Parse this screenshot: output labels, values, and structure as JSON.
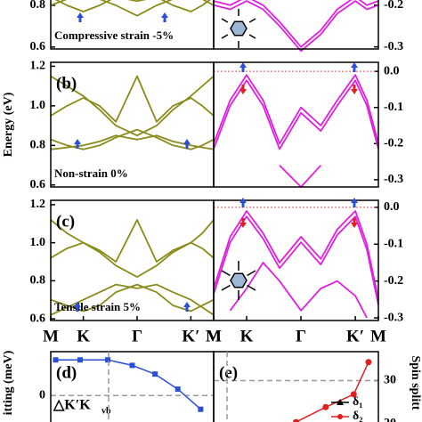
{
  "chart_data": [
    {
      "type": "line",
      "x": [
        0,
        0.1,
        0.2,
        0.3,
        0.4,
        0.53,
        0.65,
        0.75,
        0.86,
        0.93,
        1
      ],
      "ylim": [
        0.591,
        0.847
      ],
      "yticks": [
        0.8,
        0.6
      ],
      "annotations": [
        "Compressive strain -5%"
      ],
      "series": [
        {
          "color": "#8b8b1a",
          "values": [
            0.84,
            0.8,
            0.77,
            0.8,
            0.84,
            0.82,
            0.84,
            0.8,
            0.77,
            0.8,
            0.84
          ]
        },
        {
          "color": "#8b8b1a",
          "values": [
            0.8,
            0.83,
            0.845,
            0.83,
            0.8,
            0.75,
            0.8,
            0.83,
            0.845,
            0.83,
            0.8
          ]
        }
      ]
    },
    {
      "type": "line",
      "x": [
        0,
        0.1,
        0.2,
        0.3,
        0.4,
        0.53,
        0.65,
        0.75,
        0.86,
        0.93,
        1
      ],
      "ylim": [
        -0.305,
        -0.177
      ],
      "yticks": [
        -0.2,
        -0.3
      ],
      "series": [
        {
          "color": "#e020e0",
          "values": [
            -0.19,
            -0.2,
            -0.18,
            -0.2,
            -0.24,
            -0.3,
            -0.26,
            -0.21,
            -0.18,
            -0.2,
            -0.19
          ]
        },
        {
          "color": "#e020e0",
          "values": [
            -0.2,
            -0.21,
            -0.19,
            -0.21,
            -0.25,
            -0.31,
            -0.27,
            -0.22,
            -0.19,
            -0.21,
            -0.2
          ]
        }
      ]
    },
    {
      "type": "line",
      "x": [
        0,
        0.1,
        0.2,
        0.3,
        0.4,
        0.53,
        0.65,
        0.75,
        0.86,
        0.93,
        1
      ],
      "ylim": [
        0.59,
        1.22
      ],
      "yticks": [
        1.2,
        {
          "value": 1,
          "label": "1.0"
        },
        0.8,
        0.6
      ],
      "ylabel": "Energy (eV)",
      "panel_label": "(b)",
      "annotations": [
        "Non-strain 0%"
      ],
      "series": [
        {
          "color": "#8b8b1a",
          "values": [
            1.15,
            1.1,
            1.05,
            0.98,
            0.9,
            0.85,
            0.9,
            0.98,
            1.05,
            1.1,
            1.15
          ]
        },
        {
          "color": "#8b8b1a",
          "values": [
            0.95,
            1.0,
            1.04,
            1.0,
            0.92,
            1.15,
            0.92,
            1.0,
            1.04,
            1.0,
            0.95
          ]
        },
        {
          "color": "#8b8b1a",
          "values": [
            0.83,
            0.8,
            0.78,
            0.8,
            0.84,
            0.88,
            0.84,
            0.8,
            0.78,
            0.8,
            0.83
          ]
        },
        {
          "color": "#8b8b1a",
          "values": [
            0.78,
            0.79,
            0.8,
            0.82,
            0.85,
            0.83,
            0.85,
            0.82,
            0.8,
            0.79,
            0.78
          ]
        }
      ]
    },
    {
      "type": "line",
      "x": [
        0,
        0.1,
        0.2,
        0.3,
        0.4,
        0.53,
        0.65,
        0.75,
        0.86,
        0.93,
        1
      ],
      "ylim": [
        -0.32,
        0.025
      ],
      "yticks": [
        {
          "value": 0,
          "label": "0.0"
        },
        -0.1,
        -0.2,
        -0.3
      ],
      "zero_line": true,
      "series": [
        {
          "color": "#e020e0",
          "values": [
            -0.2,
            -0.08,
            -0.01,
            -0.08,
            -0.2,
            -0.1,
            -0.15,
            -0.08,
            -0.01,
            -0.08,
            -0.2
          ]
        },
        {
          "color": "#e020e0",
          "values": [
            -0.215,
            -0.095,
            -0.025,
            -0.095,
            -0.215,
            -0.115,
            -0.165,
            -0.095,
            -0.025,
            -0.095,
            -0.215
          ]
        },
        {
          "color": "#e020e0",
          "values": [
            null,
            null,
            null,
            null,
            -0.26,
            -0.32,
            -0.26,
            null,
            null,
            null,
            null
          ]
        }
      ]
    },
    {
      "type": "line",
      "x": [
        0,
        0.1,
        0.2,
        0.3,
        0.4,
        0.53,
        0.65,
        0.75,
        0.86,
        0.93,
        1
      ],
      "ylim": [
        0.591,
        1.223
      ],
      "yticks": [
        1.2,
        {
          "value": 1,
          "label": "1.0"
        },
        0.8,
        0.6
      ],
      "panel_label": "(c)",
      "annotations": [
        "Tensile strain 5%"
      ],
      "xticks": [
        {
          "value": 0,
          "label": "M"
        },
        {
          "value": 0.2,
          "label": "K"
        },
        {
          "value": 0.53,
          "label": "Γ"
        },
        {
          "value": 0.86,
          "label": "K′"
        },
        {
          "value": 1,
          "label": "M"
        }
      ],
      "series": [
        {
          "color": "#8b8b1a",
          "values": [
            1.12,
            1.05,
            1.0,
            0.95,
            0.88,
            0.82,
            0.88,
            0.95,
            1.0,
            1.05,
            1.12
          ]
        },
        {
          "color": "#8b8b1a",
          "values": [
            0.92,
            0.97,
            1.0,
            0.96,
            0.9,
            1.12,
            0.9,
            0.96,
            1.0,
            0.97,
            0.92
          ]
        },
        {
          "color": "#8b8b1a",
          "values": [
            0.7,
            0.67,
            0.64,
            0.67,
            0.74,
            0.78,
            0.74,
            0.67,
            0.64,
            0.67,
            0.7
          ]
        },
        {
          "color": "#8b8b1a",
          "values": [
            0.62,
            0.66,
            0.7,
            0.74,
            0.78,
            0.76,
            0.78,
            0.74,
            0.7,
            0.66,
            0.62
          ]
        }
      ]
    },
    {
      "type": "line",
      "x": [
        0,
        0.1,
        0.2,
        0.3,
        0.4,
        0.53,
        0.65,
        0.75,
        0.86,
        0.93,
        1
      ],
      "ylim": [
        -0.307,
        0.019
      ],
      "yticks": [
        {
          "value": 0,
          "label": "0.0"
        },
        -0.1,
        -0.2,
        -0.3
      ],
      "zero_line": true,
      "xticks": [
        {
          "value": 0,
          "label": "M"
        },
        {
          "value": 0.2,
          "label": "K"
        },
        {
          "value": 0.53,
          "label": "Γ"
        },
        {
          "value": 0.86,
          "label": "K′"
        },
        {
          "value": 1,
          "label": "M"
        }
      ],
      "series": [
        {
          "color": "#e020e0",
          "values": [
            -0.22,
            -0.08,
            -0.01,
            -0.07,
            -0.15,
            -0.08,
            -0.14,
            -0.06,
            -0.01,
            -0.1,
            -0.25
          ]
        },
        {
          "color": "#e020e0",
          "values": [
            -0.235,
            -0.095,
            -0.025,
            -0.085,
            -0.165,
            -0.095,
            -0.155,
            -0.075,
            -0.025,
            -0.115,
            -0.265
          ]
        },
        {
          "color": "#e020e0",
          "values": [
            null,
            -0.28,
            -0.22,
            -0.15,
            -0.2,
            -0.28,
            -0.22,
            -0.2,
            -0.24,
            -0.3,
            null
          ]
        }
      ]
    },
    {
      "type": "line",
      "x": [
        0.03,
        0.18,
        0.35,
        0.5,
        0.64,
        0.78,
        0.92
      ],
      "ylim": [
        -8.9,
        9.6
      ],
      "yticks": [
        0
      ],
      "ylabel": "itting (meV)",
      "panel_label": "(d)",
      "annotations": [
        "△K′K",
        "vb"
      ],
      "series": [
        {
          "color": "#2a4fd6",
          "values": [
            7.8,
            7.8,
            7.8,
            6.6,
            4.7,
            1.4,
            -3
          ]
        }
      ]
    },
    {
      "type": "line",
      "x": [
        0.32,
        0.5,
        0.68,
        0.85,
        0.94
      ],
      "ylim": [
        17,
        36.75
      ],
      "yticks": [
        30,
        20
      ],
      "ylabel": "Spin splitt",
      "panel_label": "(e)",
      "legend": [
        "δ₁",
        "δ₂"
      ],
      "series": [
        {
          "color": "#e02020",
          "values": [
            17.5,
            20.3,
            23.8,
            26.8,
            34.3
          ]
        }
      ]
    }
  ]
}
